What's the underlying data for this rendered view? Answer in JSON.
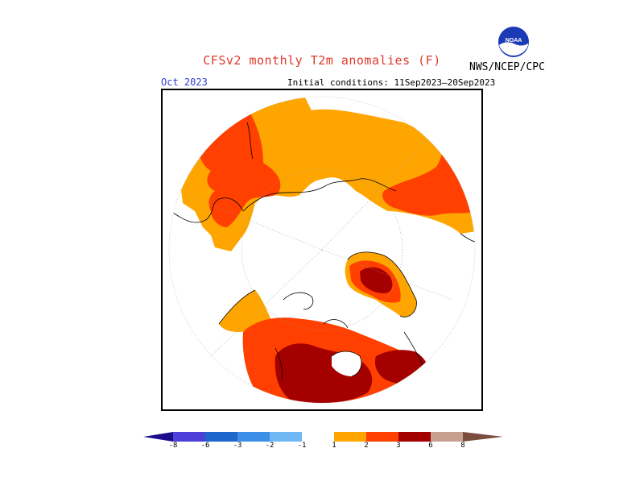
{
  "header": {
    "title": "CFSv2 monthly T2m anomalies (F)",
    "agency": "NWS/NCEP/CPC",
    "valid_month": "Oct 2023",
    "initial_conditions": "Initial conditions: 11Sep2023–20Sep2023",
    "logo_text": "NOAA"
  },
  "map": {
    "projection": "polar stereographic (north pole)",
    "regions": [
      {
        "name": "North Atlantic / Europe",
        "category": "1 to 2 F",
        "color": "#ffa500"
      },
      {
        "name": "Scandinavia / Northern Europe",
        "category": "2 to 3 F",
        "color": "#ff4000"
      },
      {
        "name": "Western Russia",
        "category": "1 to 2 F",
        "color": "#ffa500"
      },
      {
        "name": "Eastern Siberia / Kamchatka",
        "category": "2 to 3 F",
        "color": "#ff4000"
      },
      {
        "name": "Greenland interior",
        "category": "3 to 6 F",
        "color": "#a50000"
      },
      {
        "name": "Eastern Canada",
        "category": "3 to 6 F",
        "color": "#a50000"
      },
      {
        "name": "Hudson Bay / Central Canada",
        "category": "3 to 6 F",
        "color": "#a50000"
      },
      {
        "name": "Western Canada",
        "category": "2 to 3 F",
        "color": "#ff4000"
      },
      {
        "name": "Alaska",
        "category": "1 to 2 F",
        "color": "#ffa500"
      },
      {
        "name": "Arctic Ocean",
        "category": "-1 to 1 F",
        "color": "#ffffff"
      }
    ]
  },
  "colorbar": {
    "labels": [
      "-8",
      "-6",
      "-3",
      "-2",
      "-1",
      "1",
      "2",
      "3",
      "6",
      "8"
    ],
    "colors": [
      "#1a0d8c",
      "#4d40d9",
      "#1c66cc",
      "#3d8ee6",
      "#70b8f5",
      "#ffffff",
      "#ffa500",
      "#ff4000",
      "#a50000",
      "#c8a090",
      "#7a4c3c"
    ]
  }
}
